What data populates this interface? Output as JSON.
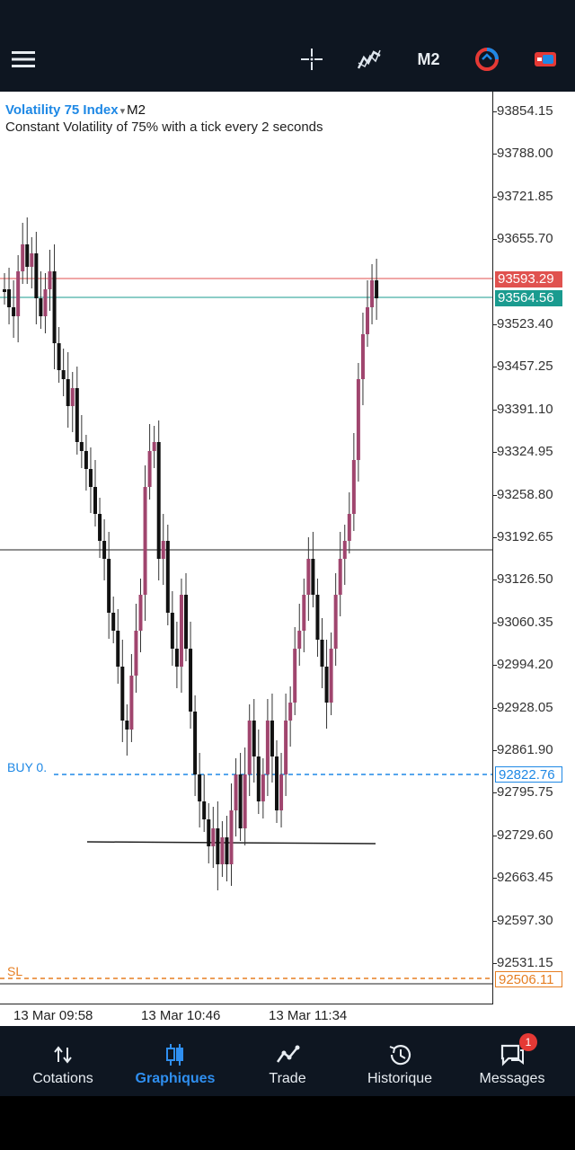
{
  "toolbar": {
    "menu_icon": "hamburger-icon",
    "crosshair_icon": "crosshair-icon",
    "indicators_icon": "indicator-icon",
    "timeframe": "M2",
    "objects_icon": "objects-icon",
    "trade_icon": "trade-icon"
  },
  "chart": {
    "symbol": "Volatility 75 Index",
    "dropdown_marker": "▾",
    "timeframe": "M2",
    "description": "Constant Volatility of 75% with a tick every 2 seconds",
    "price_axis": [
      "93854.15",
      "93788.00",
      "93721.85",
      "93655.70",
      "93523.40",
      "93457.25",
      "93391.10",
      "93324.95",
      "93258.80",
      "93192.65",
      "93126.50",
      "93060.35",
      "92994.20",
      "92928.05",
      "92861.90",
      "92795.75",
      "92729.60",
      "92663.45",
      "92597.30",
      "92531.15"
    ],
    "ask_price": "93593.29",
    "bid_price": "93564.56",
    "buy_label": "BUY 0.",
    "buy_price": "92822.76",
    "sl_label": "SL",
    "sl_price": "92506.11",
    "time_axis": [
      "13 Mar 09:58",
      "13 Mar 10:46",
      "13 Mar 11:34"
    ],
    "colors": {
      "ask": "#e0524f",
      "bid": "#1a9b8f",
      "buy": "#1e88e5",
      "sl": "#e67e22",
      "bull": "#a0456e",
      "bear": "#111111"
    }
  },
  "nav": {
    "items": [
      {
        "label": "Cotations",
        "icon": "arrows-updown-icon"
      },
      {
        "label": "Graphiques",
        "icon": "candles-icon"
      },
      {
        "label": "Trade",
        "icon": "trend-icon"
      },
      {
        "label": "Historique",
        "icon": "history-icon"
      },
      {
        "label": "Messages",
        "icon": "chat-icon"
      }
    ],
    "messages_badge": "1"
  }
}
